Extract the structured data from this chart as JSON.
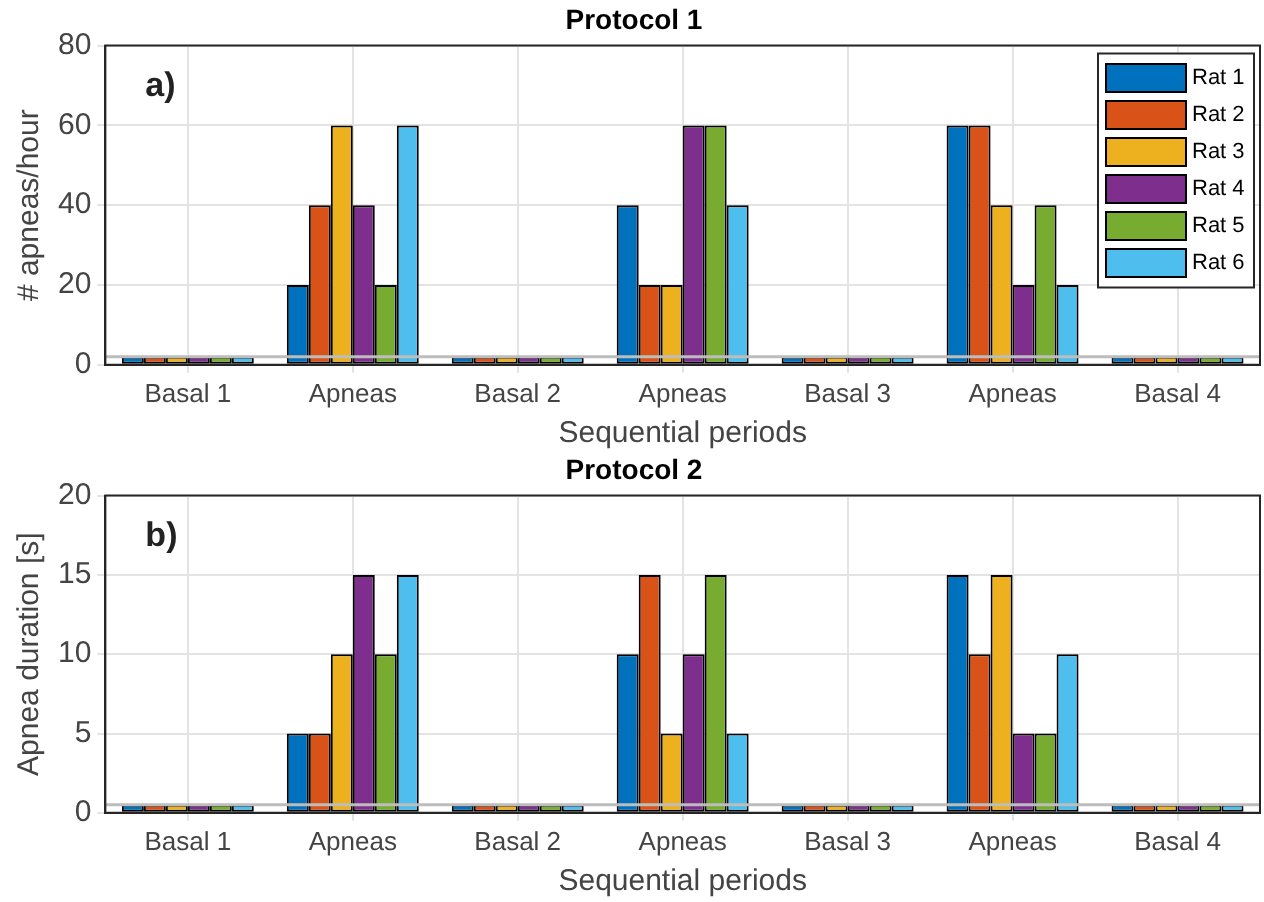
{
  "chart_data": [
    {
      "type": "bar",
      "title": "Protocol 1",
      "xlabel": "Sequential periods",
      "ylabel": "# apneas/hour",
      "annotations": [
        "a)"
      ],
      "categories": [
        "Basal 1",
        "Apneas",
        "Basal 2",
        "Apneas",
        "Basal 3",
        "Apneas",
        "Basal 4"
      ],
      "series": [
        {
          "name": "Rat 1",
          "color": "#0072bd",
          "values": [
            2,
            20,
            2,
            40,
            2,
            60,
            2
          ]
        },
        {
          "name": "Rat 2",
          "color": "#d95319",
          "values": [
            2,
            40,
            2,
            20,
            2,
            60,
            2
          ]
        },
        {
          "name": "Rat 3",
          "color": "#edb120",
          "values": [
            2,
            60,
            2,
            20,
            2,
            40,
            2
          ]
        },
        {
          "name": "Rat 4",
          "color": "#7e2f8e",
          "values": [
            2,
            40,
            2,
            60,
            2,
            20,
            2
          ]
        },
        {
          "name": "Rat 5",
          "color": "#77ac30",
          "values": [
            2,
            20,
            2,
            60,
            2,
            40,
            2
          ]
        },
        {
          "name": "Rat 6",
          "color": "#4dbeee",
          "values": [
            2,
            60,
            2,
            40,
            2,
            20,
            2
          ]
        }
      ],
      "ylim": [
        0,
        80
      ],
      "yticks": [
        0,
        20,
        40,
        60,
        80
      ],
      "grid": true,
      "legend": "top right",
      "ref_lines": [
        {
          "axis": "y",
          "value": 2,
          "color": "#bdbdbd"
        }
      ]
    },
    {
      "type": "bar",
      "title": "Protocol 2",
      "xlabel": "Sequential periods",
      "ylabel": "Apnea duration [s]",
      "annotations": [
        "b)"
      ],
      "categories": [
        "Basal 1",
        "Apneas",
        "Basal 2",
        "Apneas",
        "Basal 3",
        "Apneas",
        "Basal 4"
      ],
      "series": [
        {
          "color": "#0072bd",
          "values": [
            0.5,
            5,
            0.5,
            10,
            0.5,
            15,
            0.5
          ]
        },
        {
          "color": "#d95319",
          "values": [
            0.5,
            5,
            0.5,
            15,
            0.5,
            10,
            0.5
          ]
        },
        {
          "color": "#edb120",
          "values": [
            0.5,
            10,
            0.5,
            5,
            0.5,
            15,
            0.5
          ]
        },
        {
          "color": "#7e2f8e",
          "values": [
            0.5,
            15,
            0.5,
            10,
            0.5,
            5,
            0.5
          ]
        },
        {
          "color": "#77ac30",
          "values": [
            0.5,
            10,
            0.5,
            15,
            0.5,
            5,
            0.5
          ]
        },
        {
          "color": "#4dbeee",
          "values": [
            0.5,
            15,
            0.5,
            5,
            0.5,
            10,
            0.5
          ]
        }
      ],
      "ylim": [
        0,
        20
      ],
      "yticks": [
        0,
        5,
        10,
        15,
        20
      ],
      "grid": true,
      "ref_lines": [
        {
          "axis": "y",
          "value": 0.5,
          "color": "#bdbdbd"
        }
      ]
    }
  ]
}
